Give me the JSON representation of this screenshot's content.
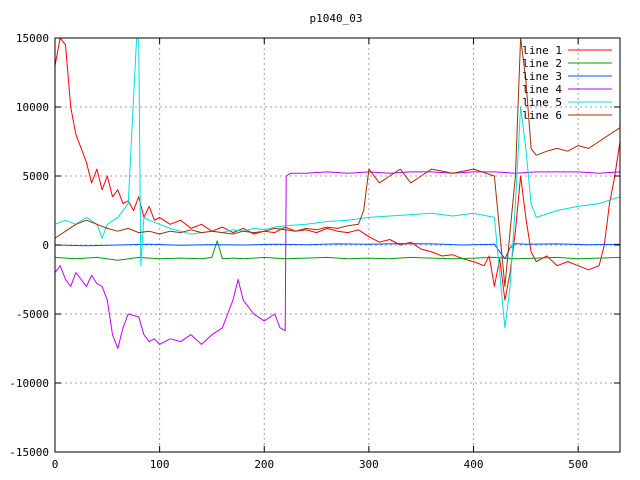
{
  "chart_data": {
    "type": "line",
    "title": "p1040_03",
    "xlabel": "",
    "ylabel": "",
    "xlim": [
      0,
      540
    ],
    "ylim": [
      -15000,
      15000
    ],
    "x_ticks": [
      0,
      100,
      200,
      300,
      400,
      500
    ],
    "y_ticks": [
      -15000,
      -10000,
      -5000,
      0,
      5000,
      10000,
      15000
    ],
    "grid": true,
    "legend_position": "top-right",
    "series": [
      {
        "name": "line 1",
        "color": "#ff0000",
        "x": [
          0,
          5,
          10,
          15,
          20,
          25,
          30,
          35,
          40,
          45,
          50,
          55,
          60,
          65,
          70,
          75,
          80,
          85,
          90,
          95,
          100,
          110,
          120,
          130,
          140,
          150,
          160,
          170,
          180,
          190,
          200,
          210,
          220,
          230,
          240,
          250,
          260,
          270,
          280,
          290,
          300,
          310,
          320,
          330,
          340,
          350,
          360,
          370,
          380,
          390,
          400,
          410,
          415,
          420,
          425,
          430,
          435,
          440,
          445,
          450,
          455,
          460,
          470,
          480,
          490,
          500,
          510,
          520,
          525,
          530,
          535,
          540
        ],
        "y": [
          13000,
          15000,
          14500,
          10000,
          8000,
          7000,
          6000,
          4500,
          5500,
          4000,
          5000,
          3500,
          4000,
          3000,
          3200,
          2500,
          3500,
          2000,
          2800,
          1800,
          2000,
          1500,
          1800,
          1200,
          1500,
          1000,
          1300,
          900,
          1200,
          800,
          1000,
          900,
          1300,
          1000,
          1100,
          900,
          1200,
          1000,
          900,
          1100,
          600,
          200,
          400,
          0,
          200,
          -300,
          -500,
          -800,
          -700,
          -1000,
          -1200,
          -1500,
          -800,
          -3000,
          -1000,
          -4000,
          -2000,
          1000,
          5000,
          2000,
          -500,
          -1200,
          -800,
          -1500,
          -1200,
          -1500,
          -1800,
          -1500,
          0,
          3000,
          5000,
          7500
        ]
      },
      {
        "name": "line 2",
        "color": "#00a000",
        "x": [
          0,
          20,
          40,
          60,
          80,
          100,
          120,
          140,
          150,
          155,
          160,
          170,
          180,
          200,
          220,
          240,
          260,
          280,
          300,
          320,
          340,
          360,
          380,
          400,
          420,
          440,
          460,
          480,
          500,
          520,
          540
        ],
        "y": [
          -900,
          -1000,
          -900,
          -1100,
          -900,
          -1000,
          -950,
          -1000,
          -900,
          300,
          -1000,
          -950,
          -1000,
          -900,
          -1000,
          -950,
          -900,
          -1000,
          -950,
          -1000,
          -900,
          -950,
          -1000,
          -950,
          -900,
          -1000,
          -950,
          -900,
          -1000,
          -950,
          -900
        ]
      },
      {
        "name": "line 3",
        "color": "#0050ff",
        "x": [
          0,
          30,
          60,
          90,
          120,
          150,
          180,
          210,
          240,
          270,
          300,
          330,
          360,
          390,
          420,
          430,
          435,
          440,
          450,
          480,
          510,
          540
        ],
        "y": [
          0,
          -50,
          0,
          50,
          -20,
          30,
          0,
          60,
          20,
          80,
          50,
          100,
          80,
          0,
          50,
          -1000,
          -200,
          100,
          50,
          80,
          20,
          50
        ]
      },
      {
        "name": "line 4",
        "color": "#c000ff",
        "x": [
          0,
          5,
          10,
          15,
          20,
          25,
          30,
          35,
          40,
          45,
          50,
          55,
          60,
          65,
          70,
          80,
          85,
          90,
          95,
          100,
          110,
          120,
          130,
          140,
          150,
          160,
          165,
          170,
          175,
          180,
          190,
          200,
          210,
          215,
          220,
          221,
          225,
          240,
          260,
          280,
          300,
          320,
          340,
          360,
          380,
          400,
          420,
          440,
          460,
          480,
          500,
          520,
          540
        ],
        "y": [
          -2000,
          -1500,
          -2500,
          -3000,
          -2000,
          -2500,
          -3000,
          -2200,
          -2800,
          -3000,
          -4000,
          -6500,
          -7500,
          -6000,
          -5000,
          -5200,
          -6500,
          -7000,
          -6800,
          -7200,
          -6800,
          -7000,
          -6500,
          -7200,
          -6500,
          -6000,
          -5000,
          -4000,
          -2500,
          -4000,
          -5000,
          -5500,
          -5000,
          -6000,
          -6200,
          5000,
          5200,
          5200,
          5300,
          5200,
          5300,
          5200,
          5300,
          5300,
          5200,
          5300,
          5300,
          5200,
          5300,
          5300,
          5300,
          5200,
          5300
        ]
      },
      {
        "name": "line 5",
        "color": "#00e0e0",
        "x": [
          0,
          10,
          20,
          30,
          40,
          45,
          50,
          60,
          70,
          78,
          80,
          82,
          85,
          90,
          100,
          110,
          120,
          130,
          140,
          150,
          160,
          170,
          180,
          190,
          200,
          210,
          220,
          240,
          260,
          280,
          300,
          320,
          340,
          360,
          380,
          400,
          420,
          430,
          435,
          440,
          445,
          450,
          455,
          460,
          480,
          500,
          520,
          540
        ],
        "y": [
          1500,
          1800,
          1500,
          2000,
          1500,
          500,
          1500,
          2000,
          3000,
          15000,
          15000,
          -1500,
          2000,
          1800,
          1500,
          1200,
          1000,
          800,
          900,
          1000,
          900,
          1100,
          1000,
          1200,
          1100,
          1300,
          1400,
          1500,
          1700,
          1800,
          2000,
          2100,
          2200,
          2300,
          2100,
          2300,
          2000,
          -6000,
          -3000,
          3000,
          10000,
          7000,
          3000,
          2000,
          2500,
          2800,
          3000,
          3500
        ]
      },
      {
        "name": "line 6",
        "color": "#a03000",
        "x": [
          0,
          10,
          20,
          30,
          40,
          50,
          60,
          70,
          80,
          90,
          100,
          110,
          120,
          130,
          140,
          150,
          160,
          170,
          180,
          190,
          200,
          210,
          220,
          230,
          240,
          250,
          260,
          270,
          280,
          290,
          295,
          300,
          310,
          320,
          330,
          340,
          350,
          360,
          380,
          400,
          420,
          430,
          435,
          440,
          445,
          450,
          455,
          460,
          470,
          480,
          490,
          500,
          510,
          520,
          530,
          540
        ],
        "y": [
          500,
          1000,
          1500,
          1800,
          1500,
          1200,
          1000,
          1200,
          900,
          1000,
          800,
          1000,
          900,
          1100,
          900,
          1000,
          900,
          800,
          1000,
          900,
          1000,
          1200,
          1100,
          1000,
          1200,
          1100,
          1300,
          1200,
          1400,
          1500,
          2500,
          5500,
          4500,
          5000,
          5500,
          4500,
          5000,
          5500,
          5200,
          5500,
          5000,
          -3000,
          1000,
          5000,
          15000,
          12000,
          7000,
          6500,
          6800,
          7000,
          6800,
          7200,
          7000,
          7500,
          8000,
          8500
        ]
      }
    ]
  }
}
